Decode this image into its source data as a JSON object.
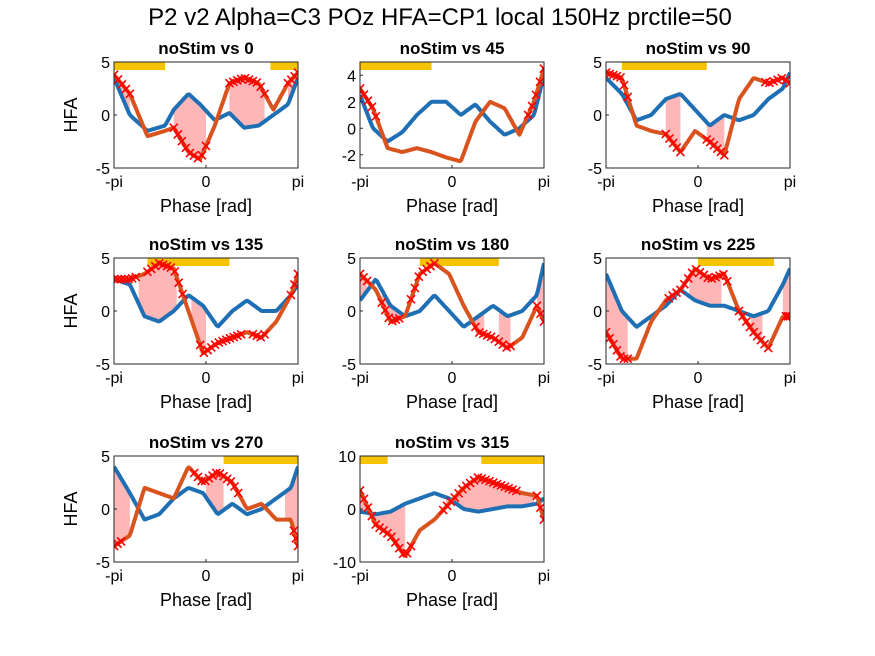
{
  "figure_title": "P2 v2 Alpha=C3 POz HFA=CP1 local 150Hz prctile=50",
  "colors": {
    "nostim": "#1f6fb4",
    "stim": "#d9531e",
    "marker": "#ff0000",
    "shade": "#ffb6b6",
    "sigbar": "#f5c300"
  },
  "chart_data": [
    {
      "type": "line",
      "title": "noStim vs 0",
      "xlabel": "Phase [rad]",
      "ylabel": "HFA",
      "xlim": [
        -3.1416,
        3.1416
      ],
      "ylim": [
        -5,
        5
      ],
      "xticks": [
        -3.1416,
        0,
        3.1416
      ],
      "xticklabels": [
        "-pi",
        "0",
        "pi"
      ],
      "yticks": [
        -5,
        0,
        5
      ],
      "yticklabels": [
        "-5",
        "0",
        "5"
      ],
      "sig_bars": [
        [
          -3.14,
          -1.4
        ],
        [
          2.2,
          3.14
        ]
      ],
      "shaded": [
        [
          -3.14,
          -2.6
        ],
        [
          -1.1,
          0
        ],
        [
          0.8,
          2.0
        ],
        [
          2.8,
          3.14
        ]
      ],
      "x": [
        -3.14,
        -2.6,
        -2.0,
        -1.4,
        -1.1,
        -0.6,
        -0.2,
        0.3,
        0.8,
        1.3,
        1.8,
        2.3,
        2.8,
        3.14
      ],
      "series": [
        {
          "name": "",
          "values": [
            3.5,
            0,
            -1.5,
            -1.0,
            0.5,
            2.0,
            1.0,
            -0.5,
            0.2,
            -1.2,
            -1.0,
            0,
            1.0,
            3.5
          ]
        },
        {
          "name": "",
          "values": [
            3.8,
            2.0,
            -2.0,
            -1.5,
            -1.2,
            -3.5,
            -4.2,
            -1.0,
            3.0,
            3.5,
            3.0,
            0.5,
            3.0,
            4.0
          ]
        }
      ],
      "markers_x": [
        [
          -3.14,
          -2.6
        ],
        [
          -1.1,
          0
        ],
        [
          0.8,
          2.0
        ],
        [
          2.8,
          3.14
        ]
      ]
    },
    {
      "type": "line",
      "title": "noStim vs 45",
      "xlabel": "Phase [rad]",
      "ylabel": "",
      "xlim": [
        -3.1416,
        3.1416
      ],
      "ylim": [
        -3,
        5
      ],
      "xticks": [
        -3.1416,
        0,
        3.1416
      ],
      "xticklabels": [
        "-pi",
        "0",
        "pi"
      ],
      "yticks": [
        -2,
        0,
        2,
        4
      ],
      "yticklabels": [
        "-2",
        "0",
        "2",
        "4"
      ],
      "sig_bars": [
        [
          -3.14,
          -0.7
        ]
      ],
      "shaded": [],
      "x": [
        -3.14,
        -2.7,
        -2.2,
        -1.7,
        -1.2,
        -0.7,
        -0.2,
        0.3,
        0.8,
        1.3,
        1.8,
        2.3,
        2.8,
        3.14
      ],
      "series": [
        {
          "name": "",
          "values": [
            2.5,
            0,
            -1.0,
            -0.3,
            1.0,
            2.0,
            2.0,
            1.0,
            1.8,
            0.5,
            -0.5,
            0.0,
            1.0,
            4.0
          ]
        },
        {
          "name": "",
          "values": [
            3.0,
            1.5,
            -1.5,
            -1.8,
            -1.5,
            -1.8,
            -2.2,
            -2.5,
            0.5,
            2.0,
            1.5,
            -0.5,
            2.0,
            4.5
          ]
        }
      ],
      "markers_x": [
        [
          -3.14,
          -2.6
        ],
        [
          2.6,
          3.14
        ]
      ]
    },
    {
      "type": "line",
      "title": "noStim vs 90",
      "xlabel": "Phase [rad]",
      "ylabel": "",
      "xlim": [
        -3.1416,
        3.1416
      ],
      "ylim": [
        -5,
        5
      ],
      "xticks": [
        -3.1416,
        0,
        3.1416
      ],
      "xticklabels": [
        "-pi",
        "0",
        "pi"
      ],
      "yticks": [
        -5,
        0,
        5
      ],
      "yticklabels": [
        "-5",
        "0",
        "5"
      ],
      "sig_bars": [
        [
          -2.6,
          0.3
        ]
      ],
      "shaded": [
        [
          -1.1,
          -0.6
        ],
        [
          0.3,
          0.9
        ]
      ],
      "x": [
        -3.14,
        -2.6,
        -2.1,
        -1.6,
        -1.1,
        -0.6,
        -0.1,
        0.4,
        0.9,
        1.4,
        1.9,
        2.4,
        2.9,
        3.14
      ],
      "series": [
        {
          "name": "",
          "values": [
            3.5,
            2.0,
            -0.5,
            0.0,
            1.5,
            2.0,
            0.5,
            -1.0,
            0.0,
            -0.5,
            0.0,
            1.5,
            2.5,
            4.0
          ]
        },
        {
          "name": "",
          "values": [
            4.0,
            3.5,
            -1.0,
            -1.5,
            -1.8,
            -3.5,
            -1.5,
            -2.5,
            -3.8,
            1.5,
            3.5,
            3.0,
            3.5,
            3.0
          ]
        }
      ],
      "markers_x": [
        [
          -3.14,
          -2.4
        ],
        [
          -1.1,
          -0.6
        ],
        [
          0.3,
          0.9
        ],
        [
          2.3,
          3.14
        ]
      ]
    },
    {
      "type": "line",
      "title": "noStim vs 135",
      "xlabel": "Phase [rad]",
      "ylabel": "HFA",
      "xlim": [
        -3.1416,
        3.1416
      ],
      "ylim": [
        -5,
        5
      ],
      "xticks": [
        -3.1416,
        0,
        3.1416
      ],
      "xticklabels": [
        "-pi",
        "0",
        "pi"
      ],
      "yticks": [
        -5,
        0,
        5
      ],
      "yticklabels": [
        "-5",
        "0",
        "5"
      ],
      "sig_bars": [
        [
          -2.0,
          0.8
        ]
      ],
      "shaded": [
        [
          -2.3,
          -1.0
        ],
        [
          -0.5,
          0.0
        ]
      ],
      "x": [
        -3.14,
        -2.6,
        -2.1,
        -1.6,
        -1.1,
        -0.6,
        -0.1,
        0.4,
        0.9,
        1.4,
        1.9,
        2.4,
        2.9,
        3.14
      ],
      "series": [
        {
          "name": "",
          "values": [
            3.0,
            2.5,
            -0.5,
            -1.0,
            0.0,
            1.5,
            0.5,
            -1.5,
            0.0,
            1.0,
            0.0,
            0.0,
            1.5,
            2.5
          ]
        },
        {
          "name": "",
          "values": [
            3.0,
            3.0,
            3.5,
            4.5,
            4.0,
            0.0,
            -4.0,
            -3.0,
            -2.5,
            -2.0,
            -2.5,
            -1.0,
            1.5,
            3.5
          ]
        }
      ],
      "markers_x": [
        [
          -3.14,
          -2.4
        ],
        [
          -2.0,
          -0.8
        ],
        [
          -0.2,
          1.2
        ],
        [
          1.6,
          2.0
        ],
        [
          2.9,
          3.14
        ]
      ]
    },
    {
      "type": "line",
      "title": "noStim vs 180",
      "xlabel": "Phase [rad]",
      "ylabel": "",
      "xlim": [
        -3.1416,
        3.1416
      ],
      "ylim": [
        -5,
        5
      ],
      "xticks": [
        -3.1416,
        0,
        3.1416
      ],
      "xticklabels": [
        "-pi",
        "0",
        "pi"
      ],
      "yticks": [
        -5,
        0,
        5
      ],
      "yticklabels": [
        "-5",
        "0",
        "5"
      ],
      "sig_bars": [
        [
          -1.1,
          1.6
        ]
      ],
      "shaded": [
        [
          -3.14,
          -2.9
        ],
        [
          -2.4,
          -1.8
        ],
        [
          0.8,
          1.1
        ],
        [
          1.6,
          2.0
        ],
        [
          2.9,
          3.14
        ]
      ],
      "x": [
        -3.14,
        -2.6,
        -2.1,
        -1.6,
        -1.1,
        -0.6,
        -0.1,
        0.4,
        0.9,
        1.4,
        1.9,
        2.4,
        2.9,
        3.14
      ],
      "series": [
        {
          "name": "",
          "values": [
            1.0,
            3.0,
            0.5,
            -0.5,
            0.0,
            1.5,
            0.0,
            -1.5,
            -0.5,
            0.5,
            -0.5,
            0.0,
            1.5,
            4.5
          ]
        },
        {
          "name": "",
          "values": [
            3.5,
            2.0,
            -1.0,
            -0.5,
            3.5,
            4.5,
            3.5,
            0.5,
            -2.0,
            -2.5,
            -3.5,
            -2.5,
            0.5,
            -1.0
          ]
        }
      ],
      "markers_x": [
        [
          -3.14,
          -2.9
        ],
        [
          -2.4,
          -1.8
        ],
        [
          -1.4,
          -0.6
        ],
        [
          0.8,
          2.0
        ],
        [
          2.9,
          3.14
        ]
      ]
    },
    {
      "type": "line",
      "title": "noStim vs 225",
      "xlabel": "Phase [rad]",
      "ylabel": "",
      "xlim": [
        -3.1416,
        3.1416
      ],
      "ylim": [
        -5,
        5
      ],
      "xticks": [
        -3.1416,
        0,
        3.1416
      ],
      "xticklabels": [
        "-pi",
        "0",
        "pi"
      ],
      "yticks": [
        -5,
        0,
        5
      ],
      "yticklabels": [
        "-5",
        "0",
        "5"
      ],
      "sig_bars": [
        [
          0.0,
          2.6
        ]
      ],
      "shaded": [
        [
          -3.14,
          -2.4
        ],
        [
          -0.3,
          0.8
        ],
        [
          1.8,
          2.2
        ],
        [
          2.9,
          3.14
        ]
      ],
      "x": [
        -3.14,
        -2.6,
        -2.1,
        -1.6,
        -1.1,
        -0.6,
        -0.1,
        0.4,
        0.9,
        1.4,
        1.9,
        2.4,
        2.9,
        3.14
      ],
      "series": [
        {
          "name": "",
          "values": [
            3.5,
            0.0,
            -1.5,
            -0.5,
            0.5,
            2.0,
            1.0,
            0.5,
            0.5,
            0.0,
            -0.5,
            0.0,
            2.5,
            4.0
          ]
        },
        {
          "name": "",
          "values": [
            -2.0,
            -4.5,
            -4.5,
            -1.0,
            1.0,
            2.0,
            4.0,
            3.0,
            3.5,
            0.0,
            -2.0,
            -3.5,
            -0.5,
            -0.5
          ]
        }
      ],
      "markers_x": [
        [
          -3.14,
          -2.4
        ],
        [
          -1.0,
          1.0
        ],
        [
          1.4,
          2.4
        ],
        [
          3.0,
          3.14
        ]
      ]
    },
    {
      "type": "line",
      "title": "noStim vs 270",
      "xlabel": "Phase [rad]",
      "ylabel": "HFA",
      "xlim": [
        -3.1416,
        3.1416
      ],
      "ylim": [
        -5,
        5
      ],
      "xticks": [
        -3.1416,
        0,
        3.1416
      ],
      "xticklabels": [
        "-pi",
        "0",
        "pi"
      ],
      "yticks": [
        -5,
        0,
        5
      ],
      "yticklabels": [
        "-5",
        "0",
        "5"
      ],
      "sig_bars": [
        [
          0.6,
          3.14
        ]
      ],
      "shaded": [
        [
          -3.14,
          -2.6
        ],
        [
          0.0,
          0.6
        ],
        [
          2.7,
          3.14
        ]
      ],
      "x": [
        -3.14,
        -2.6,
        -2.1,
        -1.6,
        -1.1,
        -0.6,
        -0.1,
        0.4,
        0.9,
        1.4,
        1.9,
        2.4,
        2.9,
        3.14
      ],
      "series": [
        {
          "name": "",
          "values": [
            4.0,
            1.5,
            -1.0,
            -0.5,
            1.0,
            2.0,
            1.5,
            -0.5,
            0.5,
            -0.5,
            0.0,
            1.0,
            2.0,
            4.0
          ]
        },
        {
          "name": "",
          "values": [
            -3.5,
            -2.5,
            2.0,
            1.5,
            1.0,
            4.0,
            2.5,
            3.5,
            2.5,
            0.0,
            0.5,
            -1.0,
            -1.0,
            -3.5
          ]
        }
      ],
      "markers_x": [
        [
          -3.14,
          -2.9
        ],
        [
          -0.4,
          1.1
        ],
        [
          3.0,
          3.14
        ]
      ]
    },
    {
      "type": "line",
      "title": "noStim vs 315",
      "xlabel": "Phase [rad]",
      "ylabel": "",
      "xlim": [
        -3.1416,
        3.1416
      ],
      "ylim": [
        -10,
        10
      ],
      "xticks": [
        -3.1416,
        0,
        3.1416
      ],
      "xticklabels": [
        "-pi",
        "0",
        "pi"
      ],
      "yticks": [
        -10,
        0,
        10
      ],
      "yticklabels": [
        "-10",
        "0",
        "10"
      ],
      "sig_bars": [
        [
          -3.14,
          -2.2
        ],
        [
          1.0,
          3.14
        ]
      ],
      "shaded": [
        [
          -3.14,
          -1.6
        ],
        [
          -0.2,
          2.8
        ]
      ],
      "x": [
        -3.14,
        -2.6,
        -2.1,
        -1.6,
        -1.1,
        -0.6,
        -0.1,
        0.4,
        0.9,
        1.4,
        1.9,
        2.4,
        2.9,
        3.14
      ],
      "series": [
        {
          "name": "",
          "values": [
            -0.5,
            -1.0,
            -0.5,
            1.0,
            2.0,
            3.0,
            2.0,
            0.0,
            -0.5,
            0.0,
            0.5,
            0.5,
            1.0,
            2.0
          ]
        },
        {
          "name": "",
          "values": [
            3.5,
            -3.0,
            -5.0,
            -9.0,
            -4.0,
            -2.0,
            1.0,
            4.0,
            6.0,
            5.0,
            4.0,
            3.0,
            2.5,
            -2.0
          ]
        }
      ],
      "markers_x": [
        [
          -3.14,
          -1.4
        ],
        [
          -0.3,
          2.2
        ],
        [
          2.9,
          3.14
        ]
      ]
    }
  ]
}
